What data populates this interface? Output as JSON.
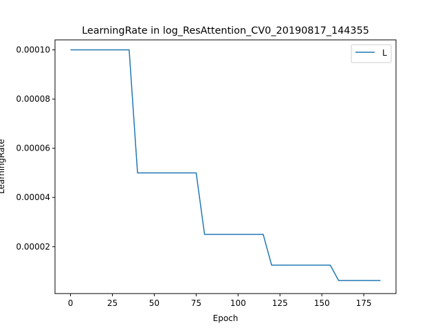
{
  "chart_data": {
    "type": "line",
    "title": "LearningRate in log_ResAttention_CV0_20190817_144355",
    "xlabel": "Epoch",
    "ylabel": "LearningRate",
    "xlim": [
      -9.25,
      194.25
    ],
    "ylim": [
      9.375e-07,
      0.0001040625
    ],
    "x_ticks": [
      0,
      25,
      50,
      75,
      100,
      125,
      150,
      175
    ],
    "x_tick_labels": [
      "0",
      "25",
      "50",
      "75",
      "100",
      "125",
      "150",
      "175"
    ],
    "y_ticks": [
      2e-05,
      4e-05,
      6e-05,
      8e-05,
      0.0001
    ],
    "y_tick_labels": [
      "0.00002",
      "0.00004",
      "0.00006",
      "0.00008",
      "0.00010"
    ],
    "grid": false,
    "legend_position": "upper right",
    "series": [
      {
        "name": "L",
        "color": "#1f77b4",
        "x": [
          0,
          35,
          40,
          75,
          80,
          115,
          120,
          155,
          160,
          185
        ],
        "y": [
          0.0001,
          0.0001,
          5e-05,
          5e-05,
          2.5e-05,
          2.5e-05,
          1.25e-05,
          1.25e-05,
          6.25e-06,
          6.25e-06
        ]
      }
    ]
  }
}
